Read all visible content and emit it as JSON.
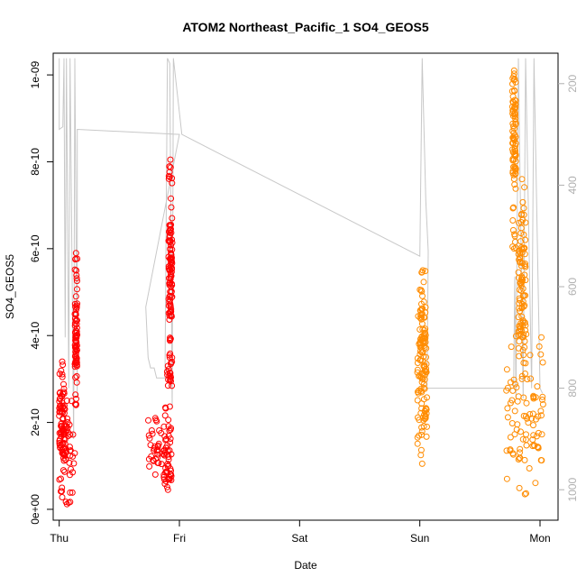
{
  "chart_data": {
    "type": "scatter",
    "title": "ATOM2 Northeast_Pacific_1 SO4_GEOS5",
    "xlabel": "Date",
    "ylabel": "SO4_GEOS5",
    "x_ticks": [
      "Thu",
      "Fri",
      "Sat",
      "Sun",
      "Mon"
    ],
    "y_ticks": [
      "0e+00",
      "2e-10",
      "4e-10",
      "6e-10",
      "8e-10",
      "1e-09"
    ],
    "y_tick_values": [
      0,
      2e-10,
      4e-10,
      6e-10,
      8e-10,
      1e-09
    ],
    "y_right_ticks": [
      "200",
      "400",
      "600",
      "800",
      "1000"
    ],
    "y_right_tick_values": [
      200,
      400,
      600,
      800,
      1000
    ],
    "x_range_days": [
      -0.05,
      4.15
    ],
    "ylim": [
      -2.5e-11,
      1.05e-09
    ],
    "y_right_lim": [
      1060,
      140
    ],
    "colors": {
      "series_red": "#ff0000",
      "series_orange": "#ff8c00",
      "pressure_line": "#c8c8c8"
    },
    "series": [
      {
        "color": "red",
        "segments": [
          {
            "x_start": 0.0,
            "x_end": 0.13,
            "y_min": 1.2e-11,
            "y_max": 2.5e-10,
            "y_mid": 1.5e-10
          },
          {
            "x_start": 0.0,
            "x_end": 0.05,
            "y_min": 2.8e-11,
            "y_max": 3.4e-10,
            "y_mid": 2e-10
          },
          {
            "x_start": 0.13,
            "x_end": 0.15,
            "y_min": 2.4e-10,
            "y_max": 5.9e-10,
            "y_mid": 4e-10
          },
          {
            "x_start": 0.74,
            "x_end": 0.86,
            "y_min": 8e-11,
            "y_max": 2.1e-10,
            "y_mid": 1.2e-10
          },
          {
            "x_start": 0.87,
            "x_end": 0.94,
            "y_min": 4.5e-11,
            "y_max": 3.3e-10,
            "y_mid": 1.3e-10
          },
          {
            "x_start": 0.91,
            "x_end": 0.94,
            "y_min": 3e-10,
            "y_max": 8.05e-10,
            "y_mid": 5.5e-10
          }
        ]
      },
      {
        "color": "orange",
        "segments": [
          {
            "x_start": 2.98,
            "x_end": 3.06,
            "y_min": 1.05e-10,
            "y_max": 4.5e-10,
            "y_mid": 2.8e-10
          },
          {
            "x_start": 3.0,
            "x_end": 3.05,
            "y_min": 3e-10,
            "y_max": 5.5e-10,
            "y_mid": 4.2e-10
          },
          {
            "x_start": 3.72,
            "x_end": 4.03,
            "y_min": 3.5e-11,
            "y_max": 4.3e-10,
            "y_mid": 2e-10
          },
          {
            "x_start": 3.82,
            "x_end": 3.88,
            "y_min": 3e-10,
            "y_max": 7.6e-10,
            "y_mid": 5e-10
          },
          {
            "x_start": 3.77,
            "x_end": 3.8,
            "y_min": 6e-10,
            "y_max": 1.01e-09,
            "y_mid": 8.5e-10
          }
        ]
      }
    ],
    "pressure_line": [
      [
        0.0,
        150
      ],
      [
        0.0,
        290
      ],
      [
        0.03,
        285
      ],
      [
        0.04,
        150
      ],
      [
        0.05,
        700
      ],
      [
        0.06,
        150
      ],
      [
        0.08,
        800
      ],
      [
        0.09,
        150
      ],
      [
        0.12,
        900
      ],
      [
        0.13,
        150
      ],
      [
        0.15,
        820
      ],
      [
        0.15,
        290
      ],
      [
        1.0,
        300
      ],
      [
        0.72,
        640
      ],
      [
        0.74,
        740
      ],
      [
        0.76,
        760
      ],
      [
        0.79,
        760
      ],
      [
        0.81,
        780
      ],
      [
        0.88,
        780
      ],
      [
        0.9,
        150
      ],
      [
        0.92,
        160
      ],
      [
        0.94,
        840
      ],
      [
        0.95,
        150
      ],
      [
        1.02,
        300
      ],
      [
        3.0,
        540
      ],
      [
        3.02,
        150
      ],
      [
        3.05,
        430
      ],
      [
        3.07,
        530
      ],
      [
        3.06,
        800
      ],
      [
        3.65,
        800
      ],
      [
        3.78,
        800
      ],
      [
        3.79,
        580
      ],
      [
        3.8,
        820
      ],
      [
        3.82,
        150
      ],
      [
        3.86,
        820
      ],
      [
        3.88,
        150
      ],
      [
        3.93,
        800
      ],
      [
        3.95,
        150
      ],
      [
        4.0,
        800
      ],
      [
        4.02,
        810
      ]
    ]
  }
}
